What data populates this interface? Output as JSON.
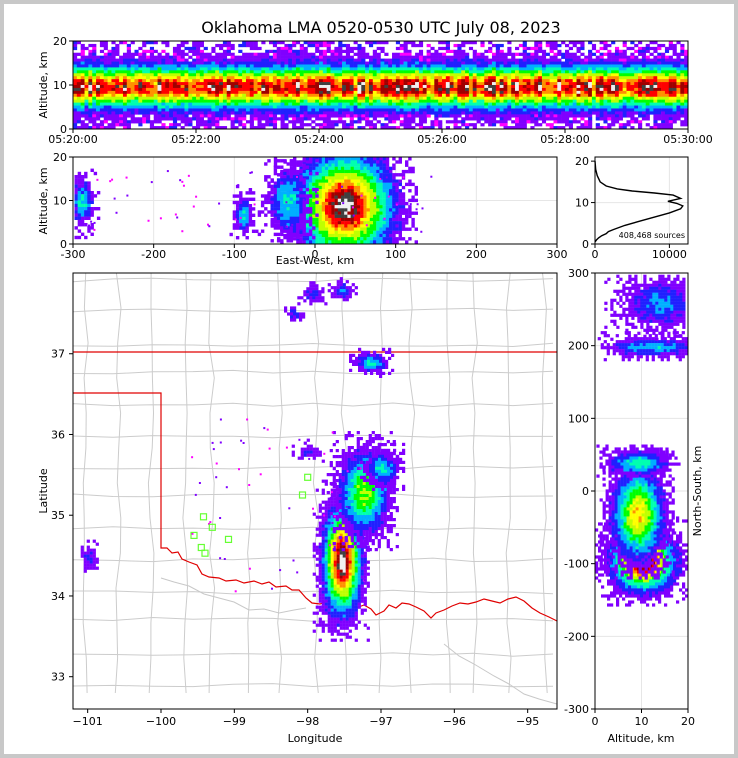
{
  "title": "Oklahoma LMA 0520-0530 UTC July 08, 2023",
  "chart_data": [
    {
      "type": "heatmap",
      "panel": "time-altitude",
      "ylabel": "Altitude, km",
      "ylim": [
        0,
        20
      ],
      "yticks": [
        0,
        10,
        20
      ],
      "xlim_minutes": [
        20,
        30
      ],
      "xticks": [
        "05:20:00",
        "05:22:00",
        "05:24:00",
        "05:26:00",
        "05:28:00",
        "05:30:00"
      ],
      "peak_altitude_km": 9.5
    },
    {
      "type": "heatmap",
      "panel": "east-west-altitude",
      "xlabel": "East-West, km",
      "ylabel": "Altitude, km",
      "xlim": [
        -300,
        300
      ],
      "ylim": [
        0,
        20
      ],
      "xticks": [
        "-300",
        "-200",
        "-100",
        "0",
        "100",
        "200",
        "300"
      ],
      "yticks": [
        "0",
        "10",
        "20"
      ],
      "clusters": [
        {
          "x": 35,
          "y": 9,
          "rx": 45,
          "ry": 9
        },
        {
          "x": -35,
          "y": 10,
          "rx": 18,
          "ry": 6
        },
        {
          "x": -290,
          "y": 10,
          "rx": 10,
          "ry": 4
        },
        {
          "x": -90,
          "y": 7,
          "rx": 8,
          "ry": 3
        }
      ]
    },
    {
      "type": "line",
      "panel": "altitude-histogram",
      "annotation": "408,468 sources",
      "xlim": [
        0,
        12500
      ],
      "ylim": [
        0,
        21
      ],
      "xticks": [
        "0",
        "10000"
      ],
      "yticks": [
        "0",
        "10",
        "20"
      ],
      "x": [
        0,
        200,
        500,
        900,
        1500,
        1800,
        2500,
        4000,
        6000,
        8000,
        10000,
        11500,
        11800,
        11000,
        9800,
        11500,
        10500,
        8000,
        5000,
        3000,
        1500,
        700,
        300,
        100,
        0
      ],
      "y": [
        0.5,
        1.0,
        1.5,
        2.0,
        2.5,
        3.0,
        3.5,
        4.5,
        5.5,
        6.5,
        7.5,
        8.5,
        9.2,
        9.8,
        10.3,
        11.0,
        11.8,
        12.3,
        12.8,
        13.3,
        14.0,
        15.0,
        16.5,
        18.0,
        20.0
      ]
    },
    {
      "type": "scatter",
      "panel": "plan-view",
      "xlabel": "Longitude",
      "ylabel": "Latitude",
      "xlim": [
        -101.2,
        -94.6
      ],
      "ylim": [
        32.6,
        38.0
      ],
      "xticks": [
        "−101",
        "−100",
        "−99",
        "−98",
        "−97",
        "−96",
        "−95"
      ],
      "yticks": [
        "33",
        "34",
        "35",
        "36",
        "37"
      ],
      "stations": [
        {
          "lon": -98.0,
          "lat": 35.47
        },
        {
          "lon": -98.07,
          "lat": 35.25
        },
        {
          "lon": -99.42,
          "lat": 34.98
        },
        {
          "lon": -99.3,
          "lat": 34.85
        },
        {
          "lon": -99.55,
          "lat": 34.75
        },
        {
          "lon": -99.45,
          "lat": 34.6
        },
        {
          "lon": -99.4,
          "lat": 34.53
        },
        {
          "lon": -99.08,
          "lat": 34.7
        }
      ]
    },
    {
      "type": "heatmap",
      "panel": "altitude-north-south",
      "xlabel": "Altitude, km",
      "ylabel": "North-South, km",
      "xlim": [
        0,
        20
      ],
      "ylim": [
        -300,
        300
      ],
      "xticks": [
        "0",
        "10",
        "20"
      ],
      "yticks": [
        "-300",
        "-200",
        "-100",
        "0",
        "100",
        "200",
        "300"
      ]
    }
  ]
}
